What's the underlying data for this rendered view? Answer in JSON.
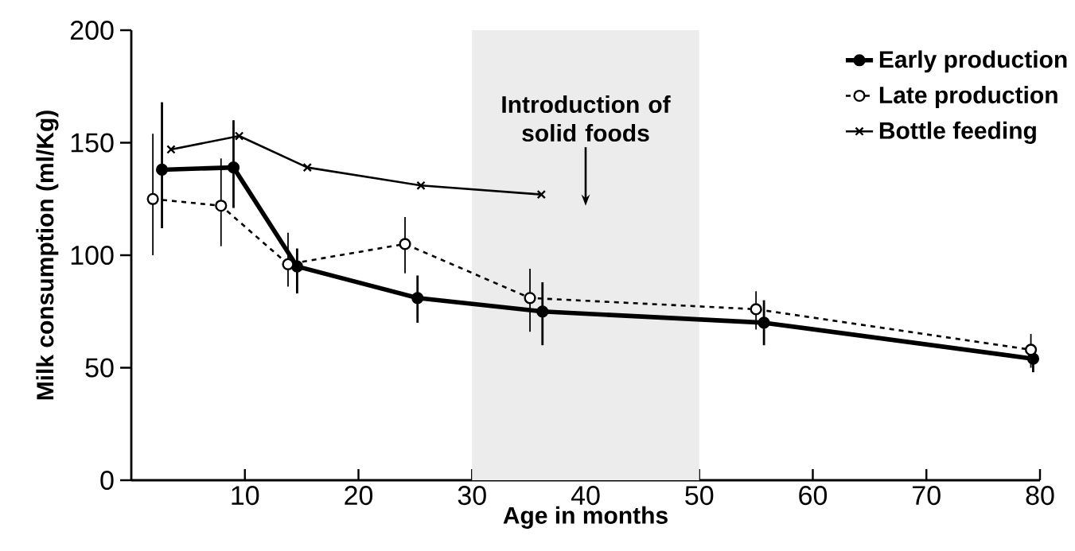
{
  "chart_data": {
    "type": "line",
    "xlabel": "Age in months",
    "ylabel": "Milk consumption (ml/Kg)",
    "xlim": [
      0,
      80
    ],
    "ylim": [
      0,
      200
    ],
    "xticks": [
      10,
      20,
      30,
      40,
      50,
      60,
      70,
      80
    ],
    "yticks": [
      0,
      50,
      100,
      150,
      200
    ],
    "legend": "top right",
    "grid": false,
    "series": [
      {
        "name": "Early production",
        "color": "#000000",
        "marker": "circle",
        "line_style": "solid",
        "x": [
          2.7,
          9.0,
          14.6,
          25.2,
          36.2,
          55.7,
          79.4
        ],
        "values": [
          138,
          139,
          95,
          81,
          75,
          70,
          54
        ],
        "errors": [
          [
            112,
            168
          ],
          [
            121,
            160
          ],
          [
            83,
            103
          ],
          [
            70,
            91
          ],
          [
            60,
            88
          ],
          [
            60,
            80
          ],
          [
            48,
            60
          ]
        ]
      },
      {
        "name": "Late production",
        "color": "#000000",
        "marker": "circle",
        "line_style": "dashed",
        "x": [
          1.9,
          7.9,
          13.8,
          24.1,
          35.1,
          55.0,
          79.2
        ],
        "values": [
          125,
          122,
          96,
          105,
          81,
          76,
          58
        ],
        "errors": [
          [
            100,
            154
          ],
          [
            104,
            143
          ],
          [
            86,
            110
          ],
          [
            92,
            117
          ],
          [
            66,
            94
          ],
          [
            67,
            84
          ],
          [
            50,
            65
          ]
        ]
      },
      {
        "name": "Bottle feeding",
        "color": "#000000",
        "marker": "cross",
        "line_style": "solid",
        "x": [
          3.5,
          9.5,
          15.5,
          25.5,
          36.1
        ],
        "values": [
          147,
          153,
          139,
          131,
          127
        ]
      }
    ],
    "bands": [
      {
        "axis": "x",
        "from": 30,
        "to": 50,
        "label": "Introduction of solid foods",
        "color": "#ececec"
      }
    ]
  }
}
